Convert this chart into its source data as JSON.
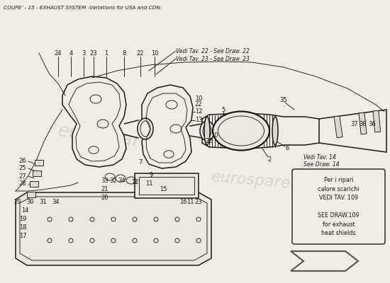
{
  "title": "COUPE’ - 15 - EXHAUST SYSTEM -Variations for USA and CDN-",
  "bg_color": "#f2ede4",
  "diagram_color": "#1a1a1a",
  "watermark_color": "#c8bfb0",
  "watermark_alpha": 0.55,
  "ref_box_text": "Per i ripari\ncalore scarichi\nVEDI TAV. 109\n\nSEE DRAW.109\nfor exhaust\nheat shields",
  "vedi_tav_14_line1": "Vedi Tav. 14",
  "vedi_tav_14_line2": "See Draw. 14",
  "vedi_tav_22": "Vedi Tav. 22 - See Draw. 22",
  "vedi_tav_23": "Vedi Tav. 23 - See Draw. 23",
  "lw_main": 1.1,
  "lw_thin": 0.65,
  "lw_thick": 1.6
}
